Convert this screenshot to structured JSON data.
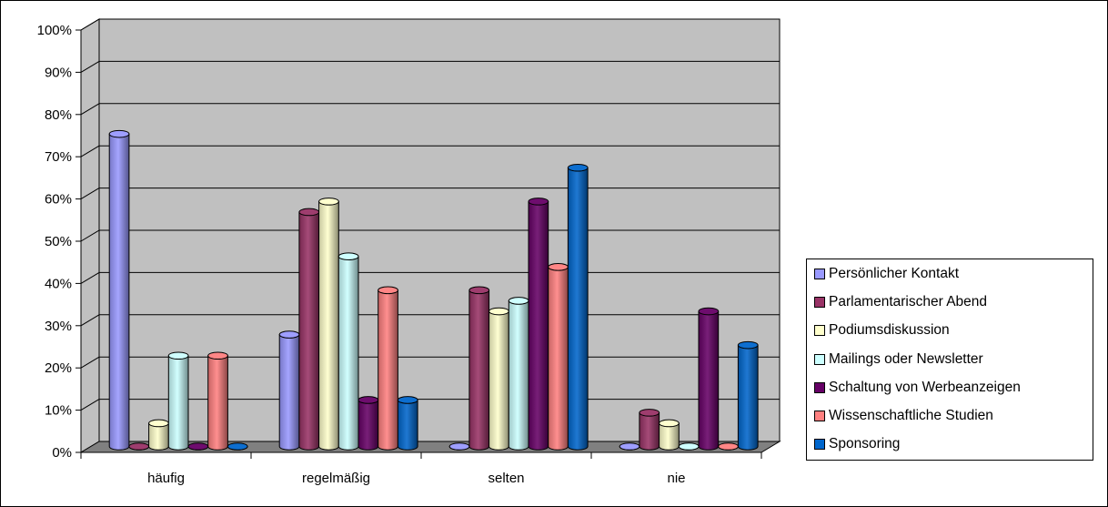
{
  "chart_data": {
    "type": "bar",
    "categories": [
      "häufig",
      "regelmäßig",
      "selten",
      "nie"
    ],
    "series": [
      {
        "name": "Persönlicher Kontakt",
        "color": "#9999ff",
        "values": [
          74,
          26.5,
          0,
          0
        ]
      },
      {
        "name": "Parlamentarischer Abend",
        "color": "#993366",
        "values": [
          0,
          55.5,
          37,
          8
        ]
      },
      {
        "name": "Podiumsdiskussion",
        "color": "#ffffcc",
        "values": [
          5.5,
          58,
          32,
          5.5
        ]
      },
      {
        "name": "Mailings oder Newsletter",
        "color": "#ccffff",
        "values": [
          21.5,
          45,
          34.5,
          0
        ]
      },
      {
        "name": "Schaltung von Werbeanzeigen",
        "color": "#660066",
        "values": [
          0,
          11,
          58,
          32
        ]
      },
      {
        "name": "Wissenschaftliche Studien",
        "color": "#ff8080",
        "values": [
          21.5,
          37,
          42.5,
          0
        ]
      },
      {
        "name": "Sponsoring",
        "color": "#0066cc",
        "values": [
          0,
          11,
          66,
          24
        ]
      }
    ],
    "ylim": [
      0,
      100
    ],
    "yticks": [
      "0%",
      "10%",
      "20%",
      "30%",
      "40%",
      "50%",
      "60%",
      "70%",
      "80%",
      "90%",
      "100%"
    ],
    "grid": true,
    "legend_position": "right",
    "wall_color": "#c0c0c0",
    "floor_color": "#808080"
  }
}
